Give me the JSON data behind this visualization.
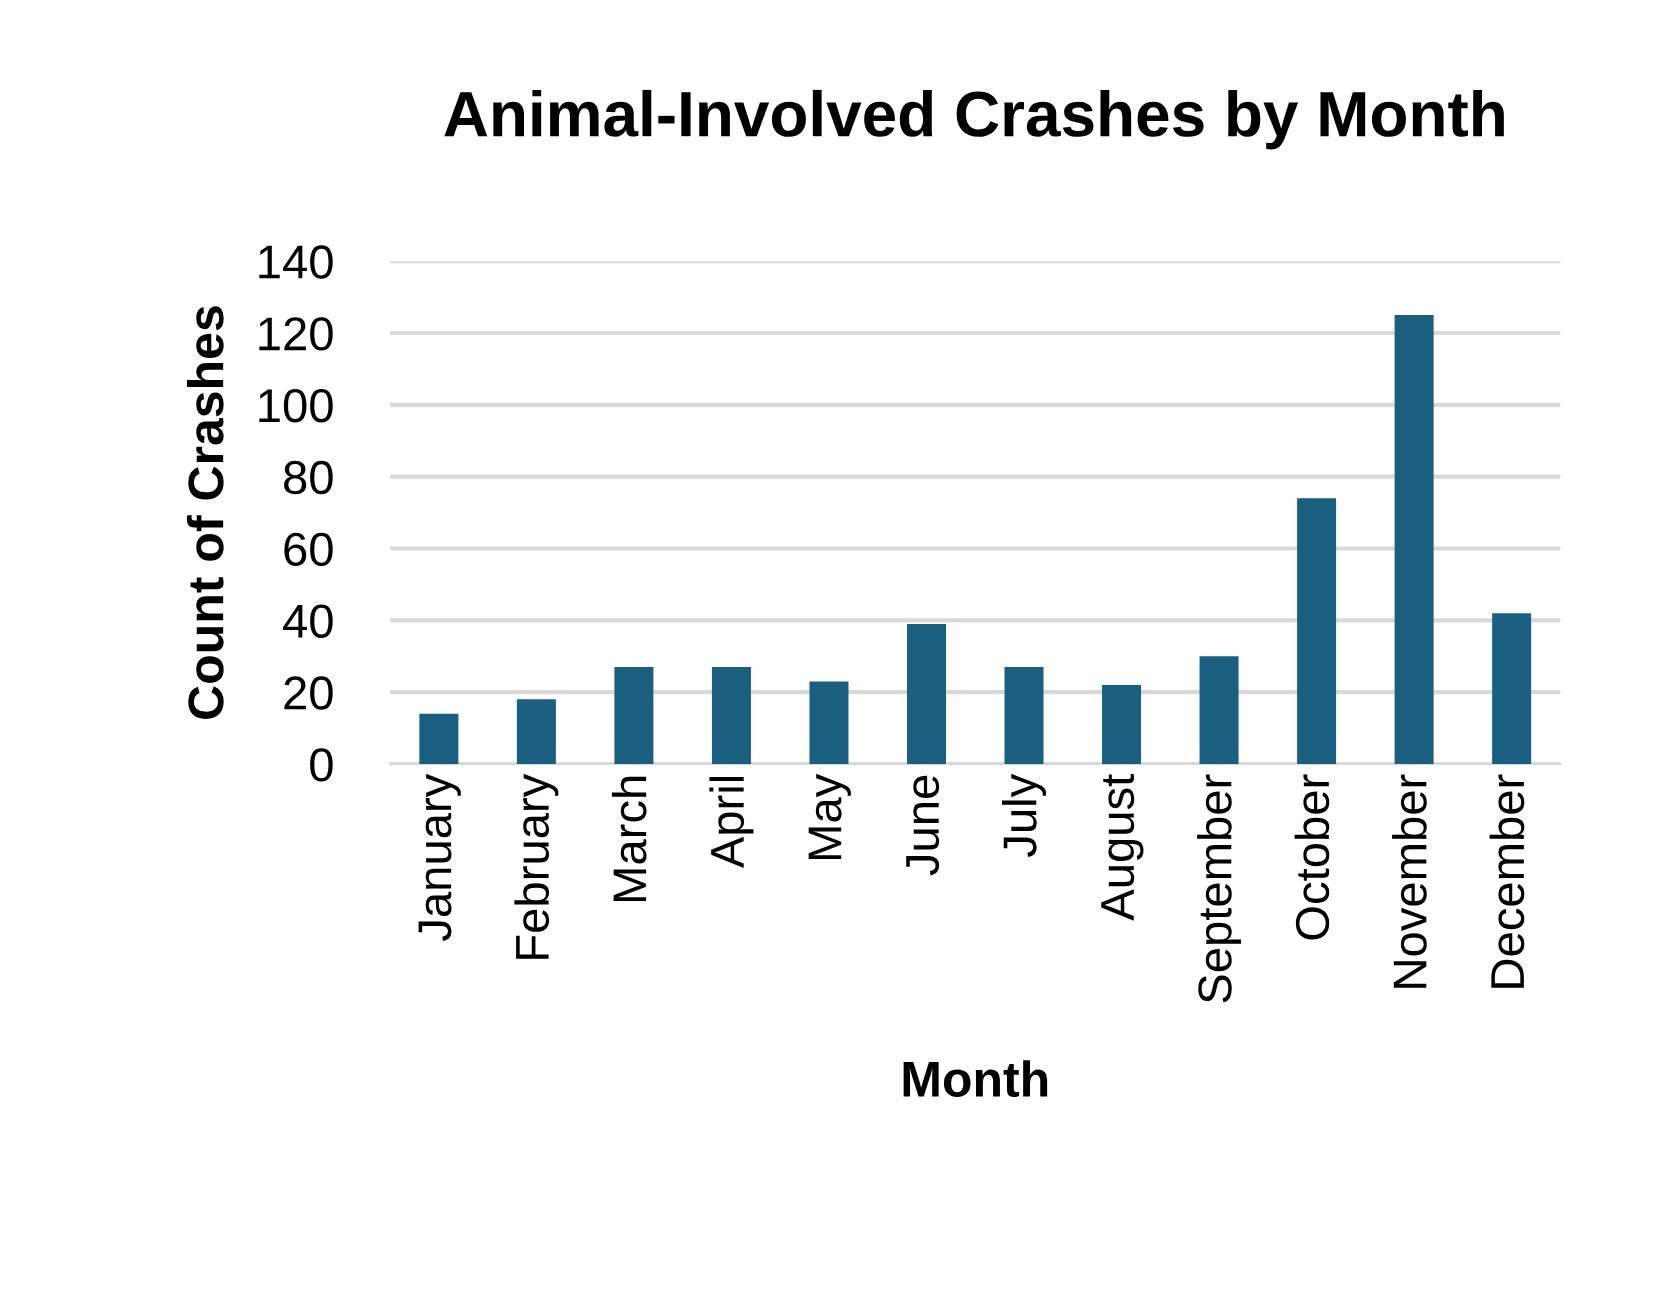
{
  "chart_data": {
    "type": "bar",
    "title": "Animal-Involved Crashes by Month",
    "xlabel": "Month",
    "ylabel": "Count of Crashes",
    "categories": [
      "January",
      "February",
      "March",
      "April",
      "May",
      "June",
      "July",
      "August",
      "September",
      "October",
      "November",
      "December"
    ],
    "values": [
      14,
      18,
      27,
      27,
      23,
      39,
      27,
      22,
      30,
      74,
      125,
      42
    ],
    "color": "#1a5e80",
    "ylim": [
      0,
      140
    ],
    "yticks": [
      0,
      20,
      40,
      60,
      80,
      100,
      120,
      140
    ],
    "grid": "y",
    "legend": false
  }
}
